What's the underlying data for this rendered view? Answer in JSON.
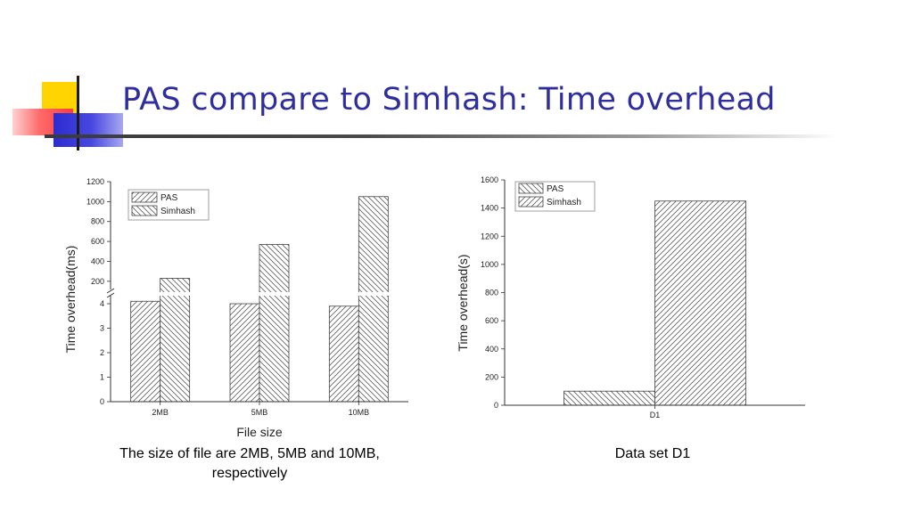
{
  "slide": {
    "title": "PAS compare to Simhash: Time overhead",
    "caption_left_line1": "The size of file are 2MB, 5MB and 10MB,",
    "caption_left_line2": "respectively",
    "caption_right": "Data set D1"
  },
  "colors": {
    "title": "#2e2e9e",
    "deco_yellow": "#ffd400",
    "deco_red": "#ff5050",
    "deco_blue": "#2b2bd1"
  },
  "chart_data": [
    {
      "type": "bar",
      "xlabel": "File size",
      "ylabel": "Time overhead(ms)",
      "categories": [
        "2MB",
        "5MB",
        "10MB"
      ],
      "series": [
        {
          "name": "PAS",
          "values": [
            4.1,
            4.0,
            3.9
          ]
        },
        {
          "name": "Simhash",
          "values": [
            230,
            570,
            1050
          ]
        }
      ],
      "broken_axis": true,
      "lower_ylim": [
        0,
        4.4
      ],
      "upper_ylim": [
        100,
        1200
      ],
      "lower_ticks": [
        "0",
        "1",
        "2",
        "3",
        "4"
      ],
      "upper_ticks": [
        "200",
        "400",
        "600",
        "800",
        "1000",
        "1200"
      ],
      "legend": "top-left",
      "grid": false
    },
    {
      "type": "bar",
      "xlabel": "",
      "ylabel": "Time overhead(s)",
      "categories": [
        "D1"
      ],
      "series": [
        {
          "name": "PAS",
          "values": [
            100
          ]
        },
        {
          "name": "Simhash",
          "values": [
            1450
          ]
        }
      ],
      "ylim": [
        0,
        1600
      ],
      "ticks": [
        "0",
        "200",
        "400",
        "600",
        "800",
        "1000",
        "1200",
        "1400",
        "1600"
      ],
      "legend": "top-left",
      "grid": false
    }
  ]
}
